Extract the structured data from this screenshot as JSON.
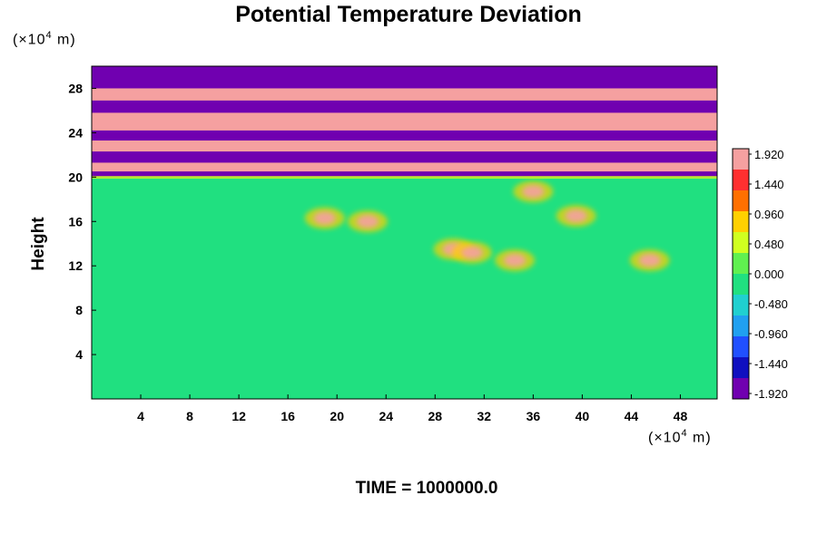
{
  "chart_data": {
    "type": "heatmap",
    "title": "Potential Temperature Deviation",
    "ylabel": "Height",
    "xlabel": "",
    "x_unit_prefix": "(×10",
    "x_unit_exp": "4",
    "x_unit_suffix": " m)",
    "y_unit_prefix": "(×10",
    "y_unit_exp": "4",
    "y_unit_suffix": " m)",
    "xlim": [
      0,
      51
    ],
    "ylim": [
      0,
      30
    ],
    "x_ticks": [
      4,
      8,
      12,
      16,
      20,
      24,
      28,
      32,
      36,
      40,
      44,
      48
    ],
    "y_ticks": [
      4,
      8,
      12,
      16,
      20,
      24,
      28
    ],
    "colorbar": {
      "range": [
        -1.92,
        1.92
      ],
      "labels": [
        "1.920",
        "1.440",
        "0.960",
        "0.480",
        "0.000",
        "-0.480",
        "-0.960",
        "-1.440",
        "-1.920"
      ],
      "colors": [
        "#f5a0a0",
        "#ff3030",
        "#ff7000",
        "#ffd000",
        "#d0ff20",
        "#60f050",
        "#20e080",
        "#20d0d0",
        "#20a0f0",
        "#2050ff",
        "#1010c0",
        "#7000b0"
      ]
    },
    "bands_above_20": [
      {
        "y_range": [
          28,
          29.6
        ],
        "value": -1.92
      },
      {
        "y_range": [
          26.9,
          28
        ],
        "value": 1.92
      },
      {
        "y_range": [
          25.8,
          26.9
        ],
        "value": -1.92
      },
      {
        "y_range": [
          24.2,
          25.8
        ],
        "value": 1.92
      },
      {
        "y_range": [
          23.3,
          24.2
        ],
        "value": -1.92
      },
      {
        "y_range": [
          22.3,
          23.3
        ],
        "value": 1.92
      },
      {
        "y_range": [
          21.3,
          22.3
        ],
        "value": -1.92
      },
      {
        "y_range": [
          20.5,
          21.3
        ],
        "value": 1.92
      },
      {
        "y_range": [
          20.0,
          20.5
        ],
        "value": -1.92
      }
    ],
    "background_below_20": 0.0,
    "warm_anomalies": [
      {
        "x": 19,
        "y": 16.3,
        "value": 1.92
      },
      {
        "x": 22.5,
        "y": 16,
        "value": 1.6
      },
      {
        "x": 29.5,
        "y": 13.5,
        "value": 1.92
      },
      {
        "x": 31,
        "y": 13.2,
        "value": 1.92
      },
      {
        "x": 34.5,
        "y": 12.5,
        "value": 1.92
      },
      {
        "x": 36,
        "y": 18.7,
        "value": 1.92
      },
      {
        "x": 39.5,
        "y": 16.5,
        "value": 1.92
      },
      {
        "x": 45.5,
        "y": 12.5,
        "value": 1.92
      }
    ],
    "time_label": "TIME = 1000000.0"
  }
}
